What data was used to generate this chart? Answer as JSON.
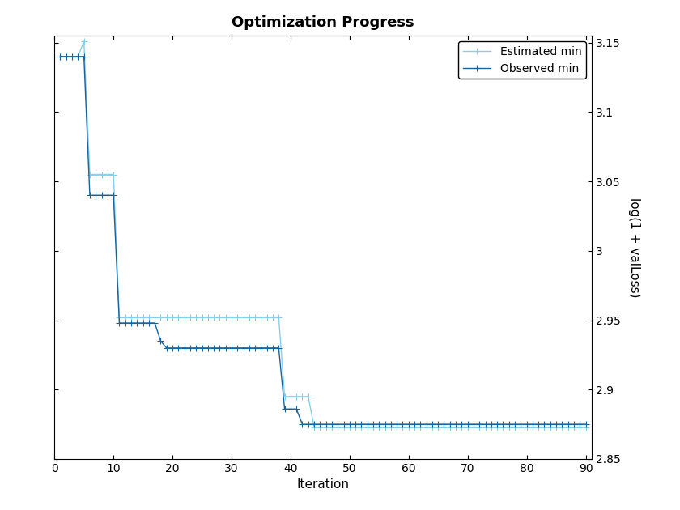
{
  "title": "Optimization Progress",
  "xlabel": "Iteration",
  "ylabel": "log(1 + valLoss)",
  "xlim": [
    0,
    91
  ],
  "ylim": [
    2.85,
    3.155
  ],
  "yticks": [
    2.85,
    2.9,
    2.95,
    3.0,
    3.05,
    3.1,
    3.15
  ],
  "xticks": [
    0,
    10,
    20,
    30,
    40,
    50,
    60,
    70,
    80,
    90
  ],
  "observed_color": "#1464a0",
  "estimated_color": "#87ceeb",
  "observed_label": "Observed min",
  "estimated_label": "Estimated min",
  "observed_x": [
    1,
    2,
    3,
    4,
    5,
    6,
    7,
    8,
    9,
    10,
    11,
    12,
    13,
    14,
    15,
    16,
    17,
    18,
    19,
    20,
    21,
    22,
    23,
    24,
    25,
    26,
    27,
    28,
    29,
    30,
    31,
    32,
    33,
    34,
    35,
    36,
    37,
    38,
    39,
    40,
    41,
    42,
    43,
    44,
    45,
    46,
    47,
    48,
    49,
    50,
    51,
    52,
    53,
    54,
    55,
    56,
    57,
    58,
    59,
    60,
    61,
    62,
    63,
    64,
    65,
    66,
    67,
    68,
    69,
    70,
    71,
    72,
    73,
    74,
    75,
    76,
    77,
    78,
    79,
    80,
    81,
    82,
    83,
    84,
    85,
    86,
    87,
    88,
    89,
    90
  ],
  "observed_y": [
    3.14,
    3.14,
    3.14,
    3.14,
    3.14,
    3.04,
    3.04,
    3.04,
    3.04,
    3.04,
    2.948,
    2.948,
    2.948,
    2.948,
    2.948,
    2.948,
    2.948,
    2.935,
    2.93,
    2.93,
    2.93,
    2.93,
    2.93,
    2.93,
    2.93,
    2.93,
    2.93,
    2.93,
    2.93,
    2.93,
    2.93,
    2.93,
    2.93,
    2.93,
    2.93,
    2.93,
    2.93,
    2.93,
    2.886,
    2.886,
    2.886,
    2.875,
    2.875,
    2.875,
    2.875,
    2.875,
    2.875,
    2.875,
    2.875,
    2.875,
    2.875,
    2.875,
    2.875,
    2.875,
    2.875,
    2.875,
    2.875,
    2.875,
    2.875,
    2.875,
    2.875,
    2.875,
    2.875,
    2.875,
    2.875,
    2.875,
    2.875,
    2.875,
    2.875,
    2.875,
    2.875,
    2.875,
    2.875,
    2.875,
    2.875,
    2.875,
    2.875,
    2.875,
    2.875,
    2.875,
    2.875,
    2.875,
    2.875,
    2.875,
    2.875,
    2.875,
    2.875,
    2.875,
    2.875,
    2.875
  ],
  "estimated_x": [
    1,
    2,
    3,
    4,
    5,
    6,
    7,
    8,
    9,
    10,
    11,
    12,
    13,
    14,
    15,
    16,
    17,
    18,
    19,
    20,
    21,
    22,
    23,
    24,
    25,
    26,
    27,
    28,
    29,
    30,
    31,
    32,
    33,
    34,
    35,
    36,
    37,
    38,
    39,
    40,
    41,
    42,
    43,
    44,
    45,
    46,
    47,
    48,
    49,
    50,
    51,
    52,
    53,
    54,
    55,
    56,
    57,
    58,
    59,
    60,
    61,
    62,
    63,
    64,
    65,
    66,
    67,
    68,
    69,
    70,
    71,
    72,
    73,
    74,
    75,
    76,
    77,
    78,
    79,
    80,
    81,
    82,
    83,
    84,
    85,
    86,
    87,
    88,
    89,
    90
  ],
  "estimated_y": [
    3.14,
    3.14,
    3.14,
    3.14,
    3.151,
    3.055,
    3.055,
    3.055,
    3.055,
    3.055,
    2.952,
    2.952,
    2.952,
    2.952,
    2.952,
    2.952,
    2.952,
    2.952,
    2.952,
    2.952,
    2.952,
    2.952,
    2.952,
    2.952,
    2.952,
    2.952,
    2.952,
    2.952,
    2.952,
    2.952,
    2.952,
    2.952,
    2.952,
    2.952,
    2.952,
    2.952,
    2.952,
    2.952,
    2.895,
    2.895,
    2.895,
    2.895,
    2.895,
    2.873,
    2.873,
    2.873,
    2.873,
    2.873,
    2.873,
    2.873,
    2.873,
    2.873,
    2.873,
    2.873,
    2.873,
    2.873,
    2.873,
    2.873,
    2.873,
    2.873,
    2.873,
    2.873,
    2.873,
    2.873,
    2.873,
    2.873,
    2.873,
    2.873,
    2.873,
    2.873,
    2.873,
    2.873,
    2.873,
    2.873,
    2.873,
    2.873,
    2.873,
    2.873,
    2.873,
    2.873,
    2.873,
    2.873,
    2.873,
    2.873,
    2.873,
    2.873,
    2.873,
    2.873,
    2.873,
    2.873
  ],
  "marker_size": 3.5,
  "line_width": 1.0,
  "background_color": "#ffffff",
  "legend_loc": "upper right"
}
